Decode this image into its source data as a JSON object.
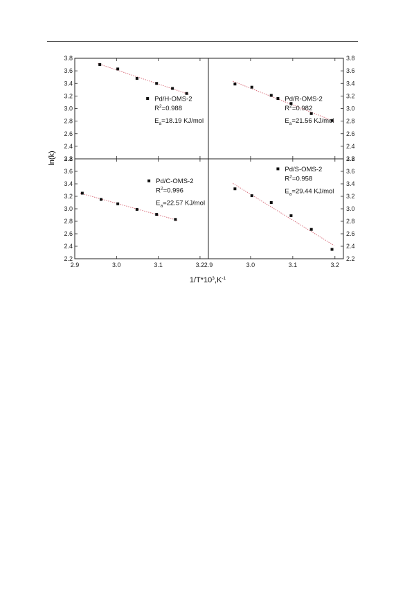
{
  "chart_data": [
    {
      "type": "scatter",
      "panel": "top-left",
      "series": [
        {
          "name": "Pd/H-OMS-2",
          "x": [
            2.96,
            3.003,
            3.049,
            3.096,
            3.134,
            3.168
          ],
          "y": [
            3.7,
            3.63,
            3.48,
            3.4,
            3.32,
            3.24
          ]
        }
      ],
      "fit": {
        "type": "linear",
        "line_style": "dotted",
        "color": "#d9707d"
      },
      "annotations": [
        "R",
        "2",
        "=0.988",
        "E",
        "a",
        "=18.19 KJ/mol"
      ],
      "legend_placement": "center-right",
      "xlim": [
        2.9,
        3.22
      ],
      "ylim": [
        2.2,
        3.8
      ]
    },
    {
      "type": "scatter",
      "panel": "top-right",
      "series": [
        {
          "name": "Pd/R-OMS-2",
          "x": [
            2.963,
            3.003,
            3.049,
            3.096,
            3.144,
            3.193
          ],
          "y": [
            3.39,
            3.34,
            3.21,
            3.08,
            2.92,
            2.81
          ]
        }
      ],
      "fit": {
        "type": "linear",
        "line_style": "dotted",
        "color": "#d9707d"
      },
      "annotations": [
        "R",
        "2",
        "=0.982",
        "E",
        "a",
        "=21.56 KJ/mol"
      ],
      "legend_placement": "bottom-right",
      "xlim": [
        2.9,
        3.22
      ],
      "ylim": [
        2.2,
        3.8
      ]
    },
    {
      "type": "scatter",
      "panel": "bottom-left",
      "series": [
        {
          "name": "Pd/C-OMS-2",
          "x": [
            2.918,
            2.963,
            3.003,
            3.049,
            3.096,
            3.141
          ],
          "y": [
            3.25,
            3.15,
            3.08,
            2.99,
            2.91,
            2.83
          ]
        }
      ],
      "fit": {
        "type": "linear",
        "line_style": "dotted",
        "color": "#d9707d"
      },
      "annotations": [
        "R",
        "2",
        "=0.996",
        "E",
        "a",
        "=22.57 KJ/mol"
      ],
      "legend_placement": "top-right",
      "xlim": [
        2.9,
        3.22
      ],
      "ylim": [
        2.2,
        3.8
      ]
    },
    {
      "type": "scatter",
      "panel": "bottom-right",
      "series": [
        {
          "name": "Pd/S-OMS-2",
          "x": [
            2.963,
            3.003,
            3.049,
            3.096,
            3.144,
            3.193
          ],
          "y": [
            3.32,
            3.21,
            3.1,
            2.89,
            2.67,
            2.35
          ]
        }
      ],
      "fit": {
        "type": "linear",
        "line_style": "dotted",
        "color": "#d9707d"
      },
      "annotations": [
        "R",
        "2",
        "=0.958",
        "E",
        "a",
        "=29.44 KJ/mol"
      ],
      "legend_placement": "top-right",
      "xlim": [
        2.9,
        3.22
      ],
      "ylim": [
        2.2,
        3.8
      ]
    }
  ],
  "shared_axes": {
    "xlabel": "1/T*10",
    "xlabel_sup1": "3",
    "xlabel_mid": ",K",
    "xlabel_sup2": "-1",
    "ylabel": "ln(k)",
    "x_ticks_left": [
      "2.9",
      "3.0",
      "3.1",
      "3.2"
    ],
    "x_ticks_right": [
      "2.9",
      "3.0",
      "3.1",
      "3.2"
    ],
    "x_tick_values": [
      2.9,
      3.0,
      3.1,
      3.2
    ],
    "y_tick_labels": [
      "2.2",
      "2.4",
      "2.6",
      "2.8",
      "3.0",
      "3.2",
      "3.4",
      "3.6",
      "3.8"
    ],
    "y_tick_values": [
      2.2,
      2.4,
      2.6,
      2.8,
      3.0,
      3.2,
      3.4,
      3.6,
      3.8
    ]
  },
  "colors": {
    "axis": "#222222",
    "marker": "#111111",
    "fit": "#d9707d"
  }
}
